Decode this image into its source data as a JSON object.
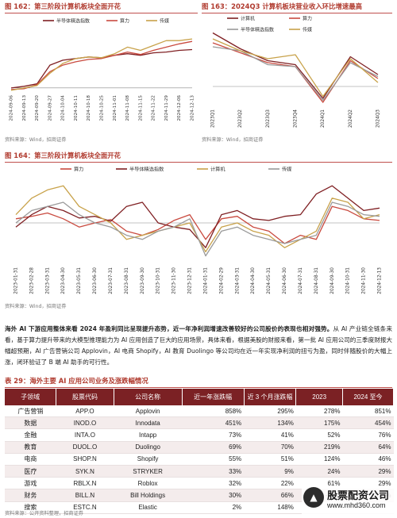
{
  "fig162": {
    "title": "图 162：第三阶段计算机板块全面开花",
    "source": "资料来源：Wind，招商证券"
  },
  "fig163": {
    "title": "图 163：2024Q3 计算机板块营业收入环比增速最高",
    "source": "资料来源：Wind，招商证券"
  },
  "fig164": {
    "title": "图 164：第三阶段计算机板块全面开花",
    "source": "资料来源：Wind，招商证券"
  },
  "paragraph": {
    "lead": "海外 AI 下游应用整体来看 2024 年盈利同比呈现提升态势，近一年净利润增速改善较好的公司股价的表现也相对强势。",
    "body": "从 AI 产业链全链条来看，基于算力提升带来的大模型推理能力为 AI 应用创造了巨大的应用场景，具体来看，根据美股的财报来看，第一批 AI 应用公司的三季度财报大幅超预期，AI 广告营销公司 Applovin，AI 电商 Shopify，AI 教育 Duolingo 等公司均在近一年实现净利润的扭亏为盈，同时伴随股价的大幅上涨，闭环验证了 B 端 AI 助手的可行性。"
  },
  "table": {
    "title": "表 29：海外主要 AI 应用公司业务及涨跌幅情况",
    "headers": [
      "子领域",
      "股票代码",
      "公司名称",
      "近一年涨跌幅",
      "近 3 个月涨跌幅",
      "2023",
      "2024 至今"
    ],
    "rows": [
      [
        "广告营销",
        "APP.O",
        "Applovin",
        "858%",
        "295%",
        "278%",
        "851%"
      ],
      [
        "数据",
        "INOD.O",
        "Innodata",
        "451%",
        "134%",
        "175%",
        "454%"
      ],
      [
        "金融",
        "INTA.O",
        "Intapp",
        "73%",
        "41%",
        "52%",
        "76%"
      ],
      [
        "教育",
        "DUOL.O",
        "Duolingo",
        "69%",
        "70%",
        "219%",
        "64%"
      ],
      [
        "电商",
        "SHOP.N",
        "Shopify",
        "55%",
        "51%",
        "124%",
        "46%"
      ],
      [
        "医疗",
        "SYK.N",
        "STRYKER",
        "33%",
        "9%",
        "24%",
        "29%"
      ],
      [
        "游戏",
        "RBLX.N",
        "Roblox",
        "32%",
        "22%",
        "61%",
        "29%"
      ],
      [
        "财务",
        "BILL.N",
        "Bill Holdings",
        "30%",
        "66%",
        "-25%",
        "12%"
      ],
      [
        "搜索",
        "ESTC.N",
        "Elastic",
        "2%",
        "148%",
        "",
        ""
      ]
    ],
    "source": "资料来源：公开资料整理，招商证券"
  },
  "watermark": {
    "brand": "股票配资公司",
    "url": "www.mhd360.com"
  },
  "chart_data": [
    {
      "type": "line",
      "title": "图 162：第三阶段计算机板块全面开花",
      "categories": [
        "2024-09-06",
        "2024-09-13",
        "2024-09-20",
        "2024-09-27",
        "2024-10-04",
        "2024-10-11",
        "2024-10-18",
        "2024-10-25",
        "2024-11-01",
        "2024-11-08",
        "2024-11-15",
        "2024-11-22",
        "2024-11-29",
        "2024-12-06",
        "2024-12-13"
      ],
      "ylim": [
        -5,
        65
      ],
      "series": [
        {
          "name": "半导体精选指数",
          "color": "#7f1f22",
          "values": [
            0,
            2,
            5,
            28,
            34,
            36,
            38,
            37,
            40,
            42,
            40,
            43,
            44,
            46,
            47
          ]
        },
        {
          "name": "算力",
          "color": "#c94a3f",
          "values": [
            -2,
            -1,
            4,
            20,
            28,
            32,
            35,
            36,
            40,
            44,
            41,
            46,
            50,
            54,
            57
          ]
        },
        {
          "name": "传媒",
          "color": "#c8a24a",
          "values": [
            -3,
            0,
            3,
            18,
            30,
            36,
            38,
            37,
            42,
            50,
            46,
            52,
            58,
            58,
            60
          ]
        }
      ]
    },
    {
      "type": "line",
      "title": "图 163：2024Q3 计算机板块营业收入环比增速最高",
      "categories": [
        "2023Q1",
        "2023Q2",
        "2023Q3",
        "2023Q4",
        "2024Q1",
        "2024Q2",
        "2024Q3"
      ],
      "ylim": [
        -0.1,
        0.3
      ],
      "series": [
        {
          "name": "计算机",
          "color": "#7f1f22",
          "values": [
            0.27,
            0.19,
            0.13,
            0.11,
            -0.06,
            0.15,
            0.06
          ]
        },
        {
          "name": "算力",
          "color": "#c94a3f",
          "values": [
            0.22,
            0.17,
            0.12,
            0.1,
            -0.08,
            0.13,
            0.04
          ]
        },
        {
          "name": "半导体精选指数",
          "color": "#9a9a9a",
          "values": [
            0.2,
            0.18,
            0.11,
            0.1,
            -0.07,
            0.12,
            0.05
          ]
        },
        {
          "name": "传媒",
          "color": "#c8a24a",
          "values": [
            0.24,
            0.18,
            0.14,
            0.16,
            -0.05,
            0.14,
            0.02
          ]
        }
      ]
    },
    {
      "type": "line",
      "title": "图 164：第三阶段计算机板块全面开花",
      "categories": [
        "2023-01-31",
        "2023-02-28",
        "2023-03-31",
        "2023-04-30",
        "2023-05-31",
        "2023-06-30",
        "2023-07-31",
        "2023-08-31",
        "2023-09-30",
        "2023-10-31",
        "2023-11-30",
        "2023-12-31",
        "2024-01-31",
        "2024-02-29",
        "2024-03-31",
        "2024-04-30",
        "2024-05-31",
        "2024-06-30",
        "2024-07-31",
        "2024-08-31",
        "2024-09-30",
        "2024-10-31",
        "2024-11-30",
        "2024-12-13"
      ],
      "ylim": [
        -50,
        50
      ],
      "series": [
        {
          "name": "算力",
          "color": "#c94a3f",
          "values": [
            5,
            8,
            12,
            5,
            -5,
            0,
            4,
            -10,
            -15,
            -8,
            3,
            10,
            -20,
            5,
            8,
            -5,
            -10,
            -25,
            -15,
            -20,
            20,
            15,
            5,
            3
          ]
        },
        {
          "name": "半导体精选指数",
          "color": "#7f1f22",
          "values": [
            -5,
            10,
            20,
            15,
            6,
            8,
            2,
            20,
            25,
            0,
            -5,
            -8,
            -30,
            10,
            15,
            5,
            3,
            8,
            10,
            35,
            45,
            30,
            15,
            18
          ]
        },
        {
          "name": "计算机",
          "color": "#c8a24a",
          "values": [
            10,
            30,
            40,
            45,
            20,
            10,
            0,
            -20,
            -15,
            -10,
            -5,
            0,
            -35,
            -5,
            0,
            -10,
            -15,
            -30,
            -20,
            -10,
            30,
            25,
            5,
            10
          ]
        },
        {
          "name": "传媒",
          "color": "#9a9a9a",
          "values": [
            0,
            15,
            20,
            25,
            10,
            0,
            -5,
            -15,
            -20,
            -10,
            -5,
            5,
            -40,
            -10,
            -5,
            -15,
            -20,
            -25,
            -20,
            -15,
            25,
            20,
            10,
            8
          ]
        }
      ]
    }
  ]
}
